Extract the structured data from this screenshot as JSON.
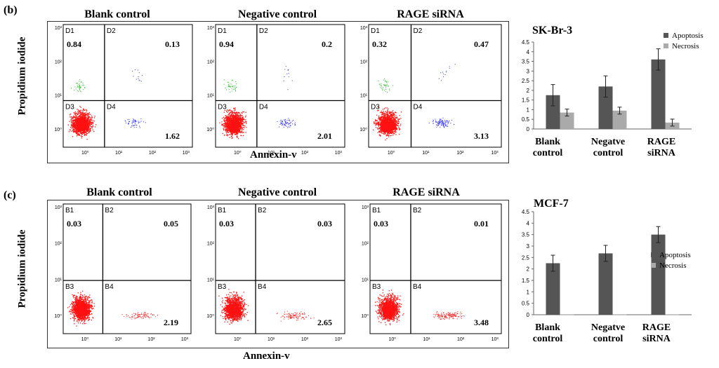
{
  "panels": [
    {
      "letter": "(b)",
      "ylabel": "Propidium iodide",
      "xlabel": "Annexin-v",
      "plots": [
        {
          "title": "Blank control",
          "quadrants": [
            "D1",
            "D2",
            "D3",
            "D4"
          ],
          "values": [
            "0.84",
            "0.13",
            "",
            "1.62"
          ]
        },
        {
          "title": "Negative control",
          "quadrants": [
            "D1",
            "D2",
            "D3",
            "D4"
          ],
          "values": [
            "0.94",
            "0.2",
            "",
            "2.01"
          ]
        },
        {
          "title": "RAGE siRNA",
          "quadrants": [
            "D1",
            "D2",
            "D3",
            "D4"
          ],
          "values": [
            "0.32",
            "0.47",
            "",
            "3.13"
          ]
        }
      ],
      "ticks": [
        "10⁰",
        "10¹",
        "10²",
        "10³"
      ],
      "colors": {
        "q3": "#ff1111",
        "q4": "#1a1aff",
        "q1": "#22bb22",
        "q2": "#3333cc"
      }
    },
    {
      "letter": "(c)",
      "ylabel": "Propidium iodide",
      "xlabel": "Annexin-v",
      "plots": [
        {
          "title": "Blank control",
          "quadrants": [
            "B1",
            "B2",
            "B3",
            "B4"
          ],
          "values": [
            "0.03",
            "0.05",
            "",
            "2.19"
          ]
        },
        {
          "title": "Negative control",
          "quadrants": [
            "B1",
            "B2",
            "B3",
            "B4"
          ],
          "values": [
            "0.03",
            "0.03",
            "",
            "2.65"
          ]
        },
        {
          "title": "RAGE siRNA",
          "quadrants": [
            "B1",
            "B2",
            "B3",
            "B4"
          ],
          "values": [
            "0.03",
            "0.01",
            "",
            "3.48"
          ]
        }
      ],
      "ticks": [
        "10⁰",
        "10¹",
        "10²",
        "10³"
      ],
      "colors": {
        "q3": "#ff1111",
        "q4": "#ff1111",
        "q1": "#ff1111",
        "q2": "#ff1111"
      }
    }
  ],
  "chart_data": [
    {
      "type": "bar",
      "title": "SK-Br-3",
      "categories": [
        "Blank control",
        "Negatve control",
        "RAGE siRNA"
      ],
      "series": [
        {
          "name": "Apoptosis",
          "color": "#555555",
          "values": [
            1.75,
            2.2,
            3.6
          ],
          "errors": [
            0.55,
            0.55,
            0.55
          ]
        },
        {
          "name": "Necrosis",
          "color": "#aaaaaa",
          "values": [
            0.85,
            0.95,
            0.33
          ],
          "errors": [
            0.18,
            0.18,
            0.18
          ]
        }
      ],
      "yticks": [
        "0",
        "0.5",
        "1",
        "1.5",
        "2",
        "2.5",
        "3",
        "3.5",
        "4",
        "4.5"
      ],
      "ylim": [
        0,
        4.5
      ],
      "legend": "top-right"
    },
    {
      "type": "bar",
      "title": "MCF-7",
      "categories": [
        "Blank control",
        "Negatve control",
        "RAGE siRNA"
      ],
      "series": [
        {
          "name": "Apoptosis",
          "color": "#555555",
          "values": [
            2.25,
            2.68,
            3.5
          ],
          "errors": [
            0.35,
            0.35,
            0.35
          ]
        },
        {
          "name": "Necrosis",
          "color": "#aaaaaa",
          "values": [
            0.02,
            0.02,
            0.02
          ],
          "errors": [
            0,
            0,
            0
          ]
        }
      ],
      "yticks": [
        "0",
        "0.5",
        "1",
        "1.5",
        "2",
        "2.5",
        "3",
        "3.5",
        "4",
        "4.5"
      ],
      "ylim": [
        0,
        4.5
      ],
      "legend": "right"
    }
  ]
}
